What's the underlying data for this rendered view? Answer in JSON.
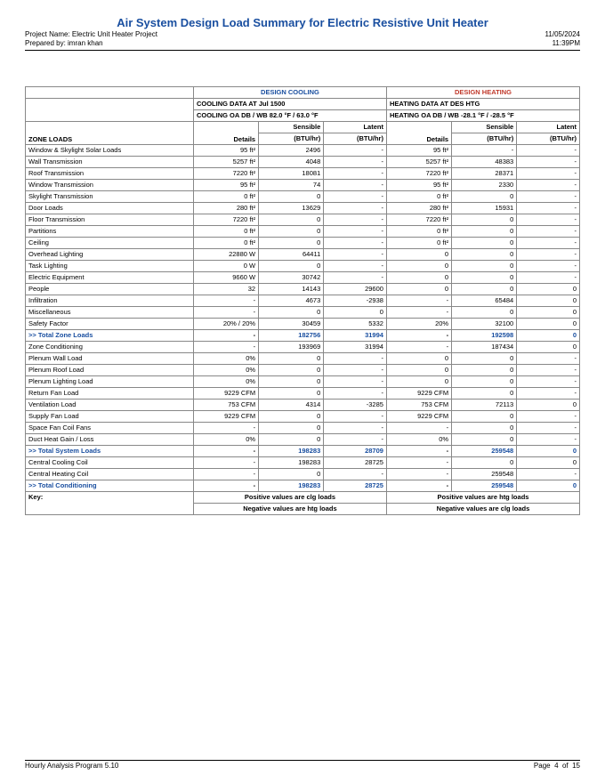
{
  "colors": {
    "title": "#1a4fa0",
    "cooling_header": "#1a4fa0",
    "heating_header": "#c0392b",
    "border": "#888888",
    "text": "#000000",
    "bold_row": "#1a4fa0"
  },
  "header": {
    "title": "Air System Design Load Summary for Electric Resistive Unit Heater",
    "project_label": "Project Name: Electric Unit Heater Project",
    "prepared_label": "Prepared by: imran khan",
    "date": "11/05/2024",
    "time": "11:39PM"
  },
  "table": {
    "design_cooling": "DESIGN COOLING",
    "design_heating": "DESIGN HEATING",
    "cooling_data": "COOLING DATA AT Jul 1500",
    "cooling_oa": "COOLING OA DB / WB   82.0 °F / 63.0 °F",
    "heating_data": "HEATING DATA AT DES HTG",
    "heating_oa": "HEATING OA DB / WB   -28.1 °F / -28.5 °F",
    "zone_loads": "ZONE LOADS",
    "details": "Details",
    "sensible": "Sensible",
    "btu": "(BTU/hr)",
    "latent": "Latent"
  },
  "rows": [
    {
      "l": "Window & Skylight Solar Loads",
      "cd": "95 ft²",
      "cs": "2496",
      "cl": "-",
      "hd": "95 ft²",
      "hs": "-",
      "hl": "-"
    },
    {
      "l": "Wall Transmission",
      "cd": "5257 ft²",
      "cs": "4048",
      "cl": "-",
      "hd": "5257 ft²",
      "hs": "48383",
      "hl": "-"
    },
    {
      "l": "Roof Transmission",
      "cd": "7220 ft²",
      "cs": "18081",
      "cl": "-",
      "hd": "7220 ft²",
      "hs": "28371",
      "hl": "-"
    },
    {
      "l": "Window Transmission",
      "cd": "95 ft²",
      "cs": "74",
      "cl": "-",
      "hd": "95 ft²",
      "hs": "2330",
      "hl": "-"
    },
    {
      "l": "Skylight Transmission",
      "cd": "0 ft²",
      "cs": "0",
      "cl": "-",
      "hd": "0 ft²",
      "hs": "0",
      "hl": "-"
    },
    {
      "l": "Door Loads",
      "cd": "280 ft²",
      "cs": "13629",
      "cl": "-",
      "hd": "280 ft²",
      "hs": "15931",
      "hl": "-"
    },
    {
      "l": "Floor Transmission",
      "cd": "7220 ft²",
      "cs": "0",
      "cl": "-",
      "hd": "7220 ft²",
      "hs": "0",
      "hl": "-"
    },
    {
      "l": "Partitions",
      "cd": "0 ft²",
      "cs": "0",
      "cl": "-",
      "hd": "0 ft²",
      "hs": "0",
      "hl": "-"
    },
    {
      "l": "Ceiling",
      "cd": "0 ft²",
      "cs": "0",
      "cl": "-",
      "hd": "0 ft²",
      "hs": "0",
      "hl": "-"
    },
    {
      "l": "Overhead Lighting",
      "cd": "22880 W",
      "cs": "64411",
      "cl": "-",
      "hd": "0",
      "hs": "0",
      "hl": "-"
    },
    {
      "l": "Task Lighting",
      "cd": "0 W",
      "cs": "0",
      "cl": "-",
      "hd": "0",
      "hs": "0",
      "hl": "-"
    },
    {
      "l": "Electric Equipment",
      "cd": "9660 W",
      "cs": "30742",
      "cl": "-",
      "hd": "0",
      "hs": "0",
      "hl": "-"
    },
    {
      "l": "People",
      "cd": "32",
      "cs": "14143",
      "cl": "29600",
      "hd": "0",
      "hs": "0",
      "hl": "0"
    },
    {
      "l": "Infiltration",
      "cd": "-",
      "cs": "4673",
      "cl": "-2938",
      "hd": "-",
      "hs": "65484",
      "hl": "0"
    },
    {
      "l": "Miscellaneous",
      "cd": "-",
      "cs": "0",
      "cl": "0",
      "hd": "-",
      "hs": "0",
      "hl": "0"
    },
    {
      "l": "Safety Factor",
      "cd": "20% / 20%",
      "cs": "30459",
      "cl": "5332",
      "hd": "20%",
      "hs": "32100",
      "hl": "0"
    },
    {
      "l": ">> Total Zone Loads",
      "cd": "-",
      "cs": "182756",
      "cl": "31994",
      "hd": "-",
      "hs": "192598",
      "hl": "0",
      "bold": true
    },
    {
      "l": "Zone Conditioning",
      "cd": "-",
      "cs": "193969",
      "cl": "31994",
      "hd": "-",
      "hs": "187434",
      "hl": "0"
    },
    {
      "l": "Plenum Wall Load",
      "cd": "0%",
      "cs": "0",
      "cl": "-",
      "hd": "0",
      "hs": "0",
      "hl": "-"
    },
    {
      "l": "Plenum Roof Load",
      "cd": "0%",
      "cs": "0",
      "cl": "-",
      "hd": "0",
      "hs": "0",
      "hl": "-"
    },
    {
      "l": "Plenum Lighting Load",
      "cd": "0%",
      "cs": "0",
      "cl": "-",
      "hd": "0",
      "hs": "0",
      "hl": "-"
    },
    {
      "l": "Return Fan Load",
      "cd": "9229 CFM",
      "cs": "0",
      "cl": "-",
      "hd": "9229 CFM",
      "hs": "0",
      "hl": "-"
    },
    {
      "l": "Ventilation Load",
      "cd": "753 CFM",
      "cs": "4314",
      "cl": "-3285",
      "hd": "753 CFM",
      "hs": "72113",
      "hl": "0"
    },
    {
      "l": "Supply Fan Load",
      "cd": "9229 CFM",
      "cs": "0",
      "cl": "-",
      "hd": "9229 CFM",
      "hs": "0",
      "hl": "-"
    },
    {
      "l": "Space Fan Coil Fans",
      "cd": "-",
      "cs": "0",
      "cl": "-",
      "hd": "-",
      "hs": "0",
      "hl": "-"
    },
    {
      "l": "Duct Heat Gain / Loss",
      "cd": "0%",
      "cs": "0",
      "cl": "-",
      "hd": "0%",
      "hs": "0",
      "hl": "-"
    },
    {
      "l": ">> Total System Loads",
      "cd": "-",
      "cs": "198283",
      "cl": "28709",
      "hd": "-",
      "hs": "259548",
      "hl": "0",
      "bold": true
    },
    {
      "l": "Central Cooling Coil",
      "cd": "-",
      "cs": "198283",
      "cl": "28725",
      "hd": "-",
      "hs": "0",
      "hl": "0"
    },
    {
      "l": "Central Heating Coil",
      "cd": "-",
      "cs": "0",
      "cl": "-",
      "hd": "-",
      "hs": "259548",
      "hl": "-"
    },
    {
      "l": ">> Total Conditioning",
      "cd": "-",
      "cs": "198283",
      "cl": "28725",
      "hd": "-",
      "hs": "259548",
      "hl": "0",
      "bold": true
    }
  ],
  "key": {
    "label": "Key:",
    "pos_clg": "Positive values are clg loads",
    "neg_htg": "Negative values are htg loads",
    "pos_htg": "Positive values are htg loads",
    "neg_clg": "Negative values are clg loads"
  },
  "footer": {
    "program": "Hourly Analysis Program 5.10",
    "page_label": "Page",
    "page_cur": "4",
    "page_of": "of",
    "page_total": "15"
  }
}
